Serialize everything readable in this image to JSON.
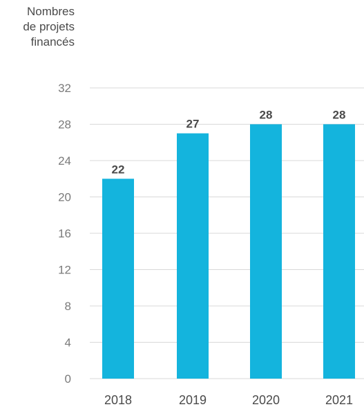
{
  "chart_data": {
    "type": "bar",
    "title": "",
    "xlabel": "",
    "ylabel_lines": [
      "Nombres",
      "de projets",
      "financés"
    ],
    "categories": [
      "2018",
      "2019",
      "2020",
      "2021"
    ],
    "values": [
      22,
      27,
      28,
      28
    ],
    "data_labels": [
      "22",
      "27",
      "28",
      "28"
    ],
    "ylim": [
      0,
      32
    ],
    "yticks": [
      0,
      4,
      8,
      12,
      16,
      20,
      24,
      28,
      32
    ],
    "grid": true,
    "legend": "none",
    "colors": {
      "bar": "#14B4DD",
      "grid": "#d9d9d9",
      "tick_text": "#7a7a7a",
      "value_text": "#4a4a4a"
    }
  }
}
